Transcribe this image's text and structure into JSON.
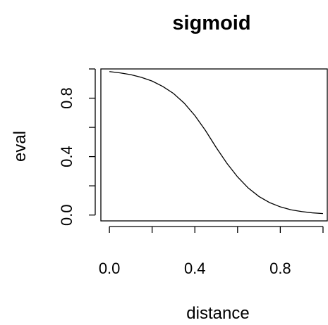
{
  "chart_data": {
    "type": "line",
    "title": "sigmoid",
    "xlabel": "distance",
    "ylabel": "eval",
    "xlim": [
      -0.04,
      1.02
    ],
    "ylim": [
      -0.04,
      1.0
    ],
    "x_ticks": [
      0.0,
      0.2,
      0.4,
      0.6,
      0.8,
      1.0
    ],
    "x_tick_labels": [
      "0.0",
      "",
      "0.4",
      "",
      "0.8",
      ""
    ],
    "y_ticks": [
      0.0,
      0.2,
      0.4,
      0.6,
      0.8,
      1.0
    ],
    "y_tick_labels": [
      "0.0",
      "",
      "0.4",
      "",
      "0.8",
      ""
    ],
    "grid": false,
    "line_color": "#000000",
    "series": [
      {
        "x": [
          0.0,
          0.05,
          0.1,
          0.15,
          0.2,
          0.25,
          0.3,
          0.35,
          0.4,
          0.45,
          0.5,
          0.55,
          0.6,
          0.65,
          0.7,
          0.75,
          0.8,
          0.85,
          0.9,
          0.95,
          1.0
        ],
        "values": [
          0.982,
          0.973,
          0.961,
          0.942,
          0.917,
          0.88,
          0.832,
          0.766,
          0.681,
          0.578,
          0.462,
          0.354,
          0.261,
          0.185,
          0.127,
          0.085,
          0.056,
          0.036,
          0.024,
          0.015,
          0.01
        ]
      }
    ]
  }
}
